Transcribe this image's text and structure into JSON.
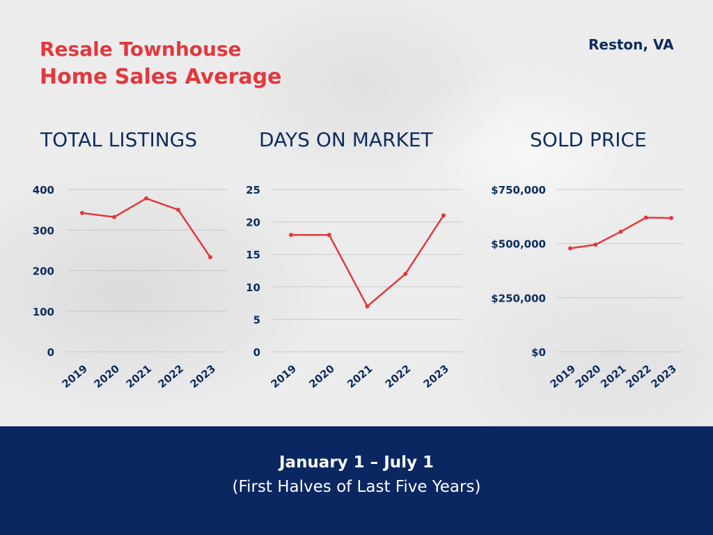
{
  "header": {
    "title": "Resale Townhouse",
    "subtitle": "Home Sales Average",
    "location": "Reston, VA"
  },
  "footer": {
    "date_range": "January 1 – July 1",
    "note": "(First Halves of Last Five Years)"
  },
  "colors": {
    "accent": "#e0393e",
    "navy": "#0d2c5f",
    "footer_bg": "#0b2761",
    "gridline": "#c8c8c8"
  },
  "chart_data": [
    {
      "type": "line",
      "title": "TOTAL LISTINGS",
      "categories": [
        "2019",
        "2020",
        "2021",
        "2022",
        "2023"
      ],
      "values": [
        342,
        332,
        378,
        350,
        233
      ],
      "yticks": [
        "0",
        "100",
        "200",
        "300",
        "400"
      ],
      "ylim": [
        0,
        400
      ],
      "grid": true
    },
    {
      "type": "line",
      "title": "DAYS ON MARKET",
      "categories": [
        "2019",
        "2020",
        "2021",
        "2022",
        "2023"
      ],
      "values": [
        18,
        18,
        7,
        12,
        21
      ],
      "yticks": [
        "0",
        "5",
        "10",
        "15",
        "20",
        "25"
      ],
      "ylim": [
        0,
        25
      ],
      "grid": true
    },
    {
      "type": "line",
      "title": "SOLD PRICE",
      "categories": [
        "2019",
        "2020",
        "2021",
        "2022",
        "2023"
      ],
      "values": [
        478000,
        495000,
        555000,
        620000,
        618000
      ],
      "yticks": [
        "$0",
        "$250,000",
        "$500,000",
        "$750,000"
      ],
      "ylim": [
        0,
        750000
      ],
      "grid": true
    }
  ]
}
